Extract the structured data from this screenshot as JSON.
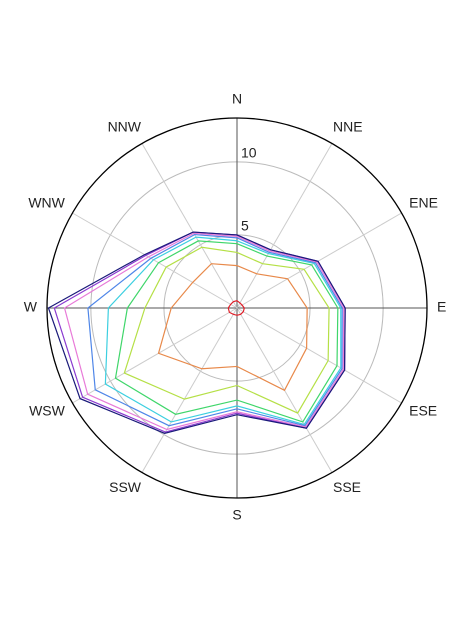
{
  "chart_data": {
    "type": "polar",
    "categories": [
      "N",
      "NNE",
      "ENE",
      "E",
      "ESE",
      "SSE",
      "S",
      "SSW",
      "WSW",
      "W",
      "WNW",
      "NNW"
    ],
    "rlim": [
      0,
      13
    ],
    "rticks": [
      5,
      10
    ],
    "grid": true,
    "series": [
      {
        "color": "#e0202a",
        "values": [
          0.5,
          0.4,
          0.4,
          0.5,
          0.5,
          0.5,
          0.5,
          0.5,
          0.6,
          0.6,
          0.5,
          0.5
        ]
      },
      {
        "color": "#e8894a",
        "values": [
          2.9,
          2.7,
          4.0,
          4.8,
          5.5,
          6.5,
          4.0,
          4.8,
          6.2,
          4.5,
          3.5,
          3.5
        ]
      },
      {
        "color": "#b5e046",
        "values": [
          3.8,
          3.5,
          5.3,
          6.3,
          7.2,
          8.3,
          5.3,
          7.2,
          8.9,
          6.3,
          5.6,
          4.8
        ]
      },
      {
        "color": "#3fd66a",
        "values": [
          4.4,
          4.1,
          5.9,
          6.9,
          7.9,
          9.0,
          6.3,
          8.4,
          9.6,
          7.5,
          6.2,
          5.3
        ]
      },
      {
        "color": "#3ccfe0",
        "values": [
          4.6,
          4.3,
          6.1,
          7.1,
          8.2,
          9.2,
          6.7,
          9.0,
          10.4,
          8.8,
          6.6,
          5.6
        ]
      },
      {
        "color": "#4f86e8",
        "values": [
          4.8,
          4.4,
          6.2,
          7.2,
          8.3,
          9.3,
          6.9,
          9.3,
          11.2,
          10.2,
          6.8,
          5.8
        ]
      },
      {
        "color": "#e87ad8",
        "values": [
          4.9,
          4.5,
          6.3,
          7.3,
          8.4,
          9.4,
          7.1,
          9.6,
          11.8,
          11.8,
          7.0,
          5.9
        ]
      },
      {
        "color": "#8a3ad0",
        "values": [
          5.0,
          4.6,
          6.4,
          7.4,
          8.5,
          9.5,
          7.2,
          9.8,
          12.2,
          12.5,
          7.2,
          6.0
        ]
      },
      {
        "color": "#1a1a7a",
        "values": [
          5.0,
          4.6,
          6.4,
          7.4,
          8.5,
          9.5,
          7.3,
          9.9,
          12.4,
          12.9,
          7.3,
          6.0
        ]
      }
    ]
  }
}
